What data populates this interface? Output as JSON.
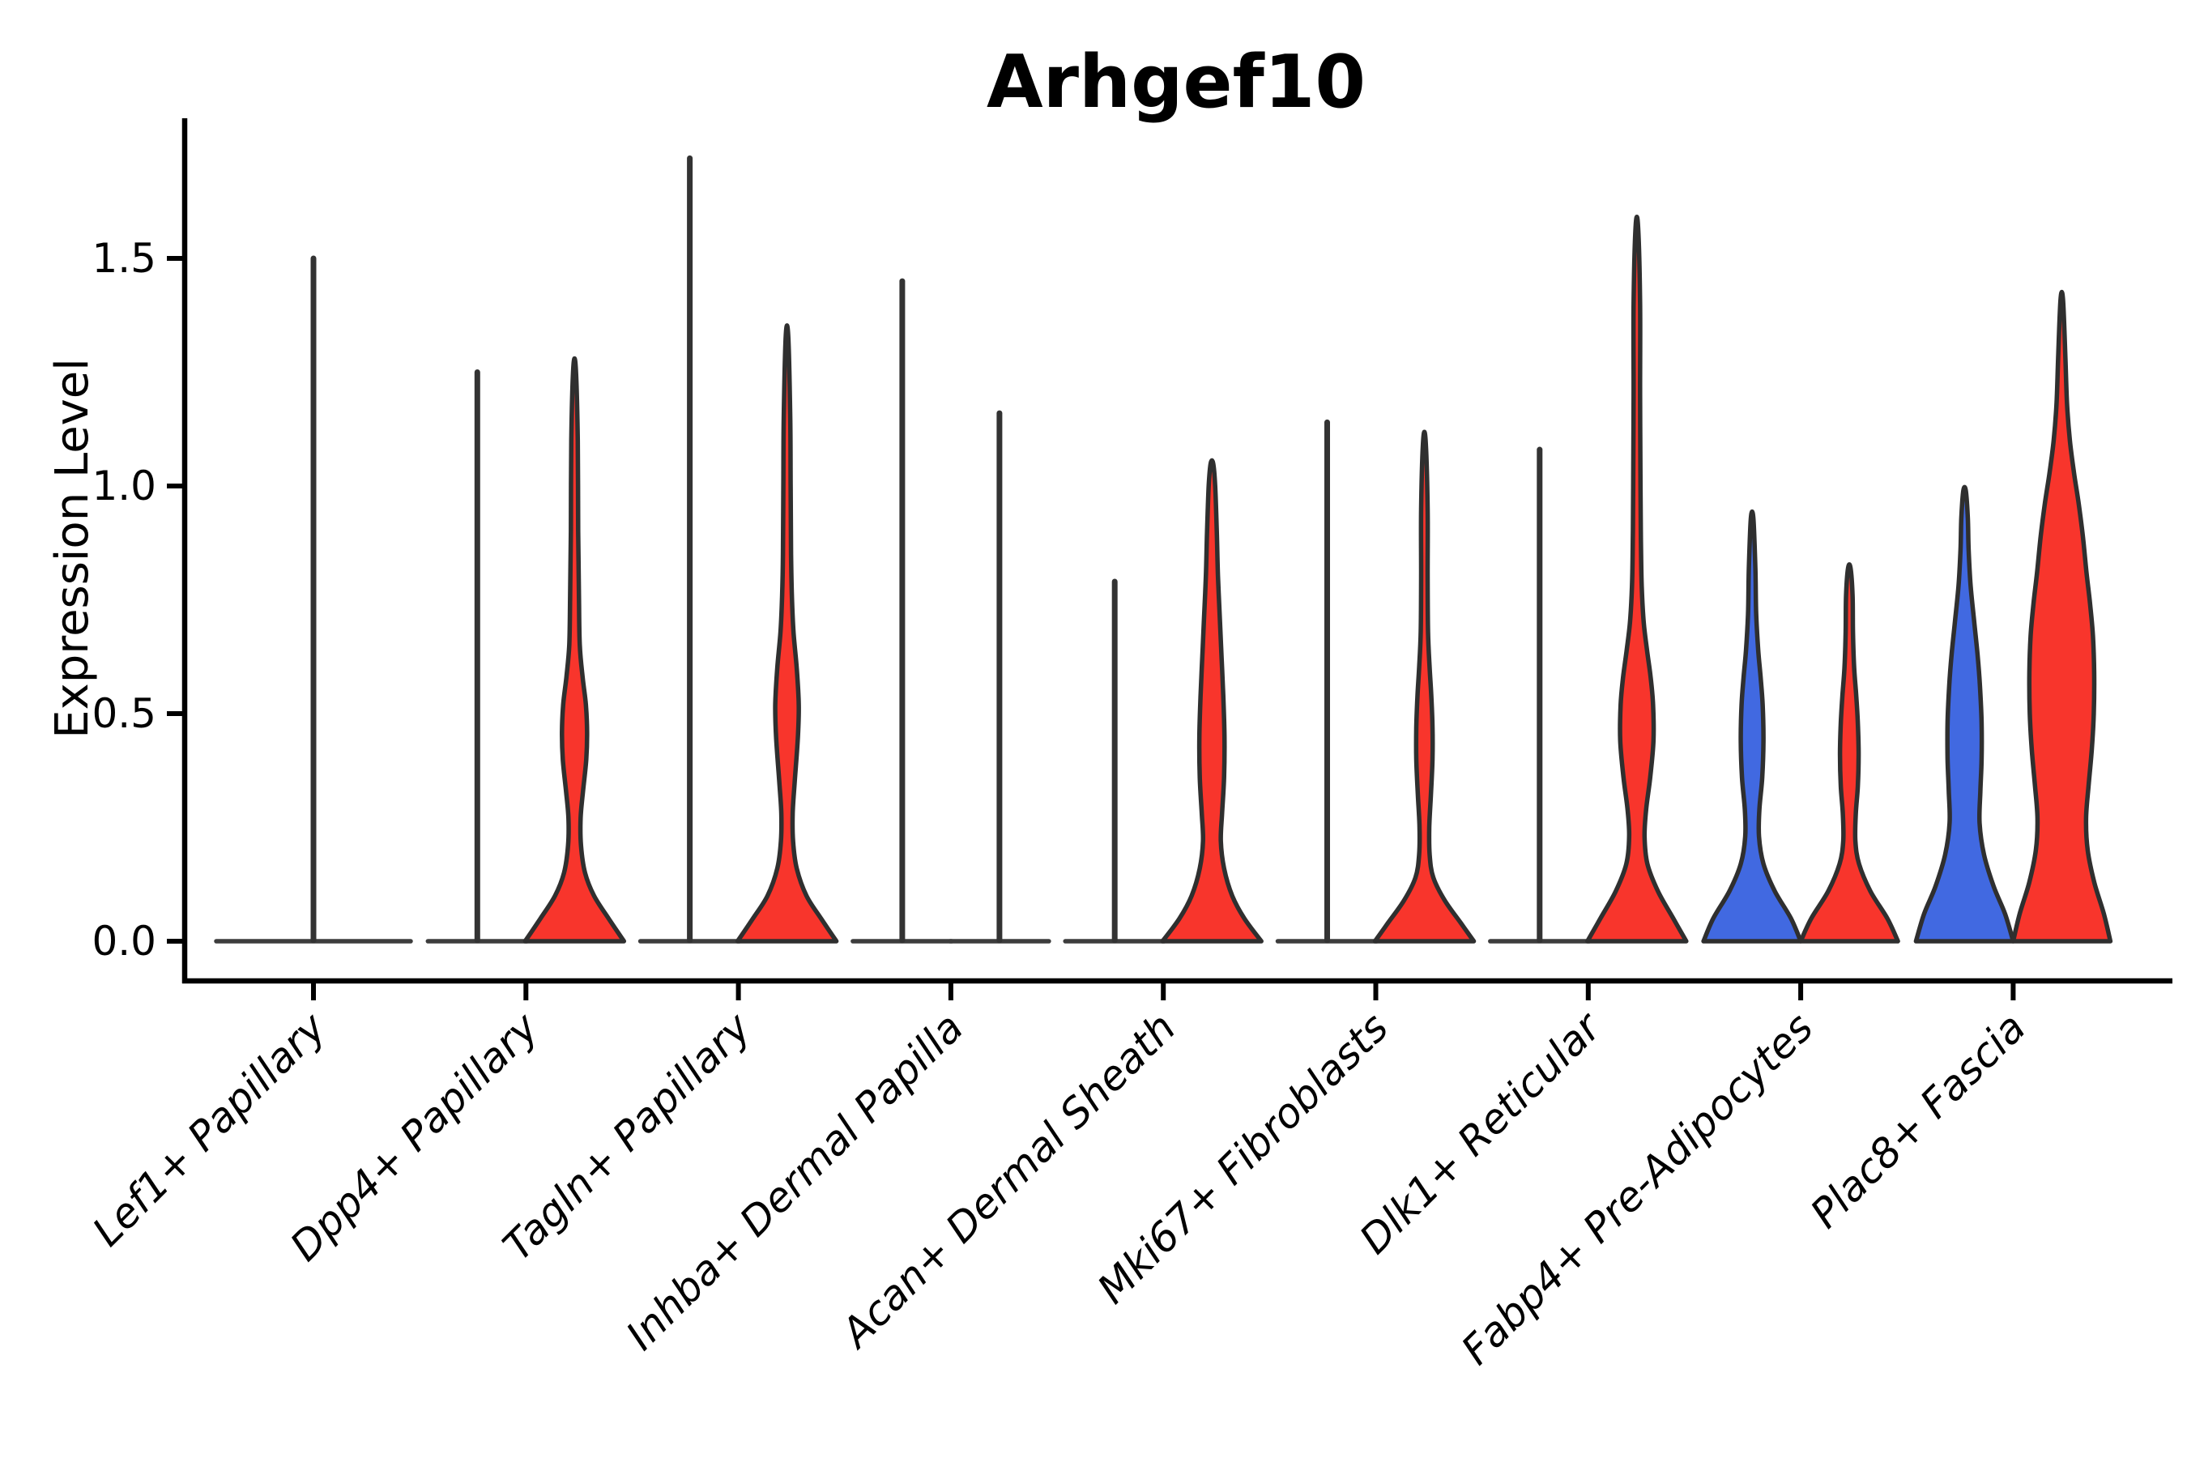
{
  "title": "Arhgef10",
  "y_axis": {
    "label": "Expression Level",
    "tick_labels": [
      "0.0",
      "0.5",
      "1.0",
      "1.5"
    ]
  },
  "x_axis": {
    "tick_labels": [
      "Lef1+ Papillary",
      "Dpp4+ Papillary",
      "Tagln+ Papillary",
      "Inhba+ Dermal Papilla",
      "Acan+ Dermal Sheath",
      "Mki67+ Fibroblasts",
      "Dlk1+ Reticular",
      "Fabp4+ Pre-Adipocytes",
      "Plac8+ Fascia"
    ]
  },
  "colors": {
    "red": "#F8352C",
    "blue": "#4169E1",
    "violin_outline": "#2F2F2F",
    "spike_line": "#333333",
    "baseline_line": "#3D3D3D",
    "axis": "#000000",
    "text": "#000000",
    "background": "#FFFFFF"
  },
  "chart_data": {
    "type": "violin",
    "title": "Arhgef10",
    "xlabel": "",
    "ylabel": "Expression Level",
    "ylim": [
      -0.09,
      1.8
    ],
    "yticks": [
      0,
      0.5,
      1.0,
      1.5
    ],
    "grid": false,
    "legend": null,
    "split_layout": "paired violins per category; left violin blue condition, right violin red condition; single centered violin when only one condition present",
    "categories": [
      "Lef1+ Papillary",
      "Dpp4+ Papillary",
      "Tagln+ Papillary",
      "Inhba+ Dermal Papilla",
      "Acan+ Dermal Sheath",
      "Mki67+ Fibroblasts",
      "Dlk1+ Reticular",
      "Fabp4+ Pre-Adipocytes",
      "Plac8+ Fascia"
    ],
    "groups": [
      {
        "category": "Lef1+ Papillary",
        "violins": [
          {
            "split": "center",
            "shape": "spike",
            "fill": null,
            "max_expression": 1.5,
            "base_halfwidth": 120
          }
        ]
      },
      {
        "category": "Dpp4+ Papillary",
        "violins": [
          {
            "split": "left",
            "shape": "spike",
            "fill": null,
            "max_expression": 1.25,
            "base_halfwidth": 61
          },
          {
            "split": "right",
            "shape": "density",
            "fill": "red",
            "max_expression": 1.26,
            "base_halfwidth": 61,
            "profile": [
              [
                0,
                61
              ],
              [
                0.05,
                42
              ],
              [
                0.1,
                24
              ],
              [
                0.15,
                13
              ],
              [
                0.21,
                8
              ],
              [
                0.27,
                7.5
              ],
              [
                0.33,
                10.5
              ],
              [
                0.4,
                14.5
              ],
              [
                0.46,
                15.5
              ],
              [
                0.52,
                14
              ],
              [
                0.58,
                10
              ],
              [
                0.65,
                6.5
              ],
              [
                0.75,
                5.5
              ],
              [
                0.9,
                4.5
              ],
              [
                1.1,
                4
              ],
              [
                1.26,
                1.5
              ]
            ]
          }
        ]
      },
      {
        "category": "Tagln+ Papillary",
        "violins": [
          {
            "split": "left",
            "shape": "spike",
            "fill": null,
            "max_expression": 1.72,
            "base_halfwidth": 61
          },
          {
            "split": "right",
            "shape": "density",
            "fill": "red",
            "max_expression": 1.33,
            "base_halfwidth": 61,
            "profile": [
              [
                0,
                61
              ],
              [
                0.05,
                42
              ],
              [
                0.1,
                24
              ],
              [
                0.16,
                12
              ],
              [
                0.22,
                7.5
              ],
              [
                0.28,
                7
              ],
              [
                0.35,
                9.5
              ],
              [
                0.45,
                13.5
              ],
              [
                0.52,
                14.5
              ],
              [
                0.6,
                12
              ],
              [
                0.68,
                8
              ],
              [
                0.76,
                6
              ],
              [
                0.85,
                5
              ],
              [
                1.0,
                4.5
              ],
              [
                1.15,
                4
              ],
              [
                1.33,
                1.5
              ]
            ]
          }
        ]
      },
      {
        "category": "Inhba+ Dermal Papilla",
        "violins": [
          {
            "split": "left",
            "shape": "spike",
            "fill": null,
            "max_expression": 1.45,
            "base_halfwidth": 61
          },
          {
            "split": "right",
            "shape": "spike",
            "fill": null,
            "max_expression": 1.16,
            "base_halfwidth": 61
          }
        ]
      },
      {
        "category": "Acan+ Dermal Sheath",
        "violins": [
          {
            "split": "left",
            "shape": "spike",
            "fill": null,
            "max_expression": 0.79,
            "base_halfwidth": 61
          },
          {
            "split": "right",
            "shape": "density",
            "fill": "red",
            "max_expression": 1.05,
            "base_halfwidth": 61,
            "profile": [
              [
                0,
                61
              ],
              [
                0.05,
                40
              ],
              [
                0.1,
                25
              ],
              [
                0.16,
                15
              ],
              [
                0.22,
                11
              ],
              [
                0.28,
                12.5
              ],
              [
                0.36,
                15
              ],
              [
                0.45,
                15.5
              ],
              [
                0.54,
                14
              ],
              [
                0.62,
                12
              ],
              [
                0.7,
                10
              ],
              [
                0.8,
                7.5
              ],
              [
                0.9,
                6
              ],
              [
                1.0,
                4
              ],
              [
                1.05,
                1.5
              ]
            ]
          }
        ]
      },
      {
        "category": "Mki67+ Fibroblasts",
        "violins": [
          {
            "split": "left",
            "shape": "spike",
            "fill": null,
            "max_expression": 1.14,
            "base_halfwidth": 61
          },
          {
            "split": "right",
            "shape": "density",
            "fill": "red",
            "max_expression": 1.1,
            "base_halfwidth": 61,
            "profile": [
              [
                0,
                61
              ],
              [
                0.04,
                45
              ],
              [
                0.09,
                25
              ],
              [
                0.14,
                11
              ],
              [
                0.19,
                6.5
              ],
              [
                0.25,
                6
              ],
              [
                0.32,
                8
              ],
              [
                0.4,
                10
              ],
              [
                0.47,
                10
              ],
              [
                0.54,
                8.5
              ],
              [
                0.6,
                6.5
              ],
              [
                0.68,
                4.5
              ],
              [
                0.8,
                4
              ],
              [
                0.95,
                4
              ],
              [
                1.1,
                1.5
              ]
            ]
          }
        ]
      },
      {
        "category": "Dlk1+ Reticular",
        "violins": [
          {
            "split": "left",
            "shape": "spike",
            "fill": null,
            "max_expression": 1.08,
            "base_halfwidth": 61
          },
          {
            "split": "right",
            "shape": "density",
            "fill": "red",
            "max_expression": 1.57,
            "base_halfwidth": 61,
            "profile": [
              [
                0,
                61
              ],
              [
                0.05,
                45
              ],
              [
                0.11,
                26
              ],
              [
                0.17,
                13
              ],
              [
                0.23,
                9.5
              ],
              [
                0.29,
                11.5
              ],
              [
                0.36,
                16.5
              ],
              [
                0.44,
                20.5
              ],
              [
                0.52,
                20
              ],
              [
                0.58,
                17
              ],
              [
                0.64,
                12.5
              ],
              [
                0.7,
                8.5
              ],
              [
                0.78,
                6
              ],
              [
                0.88,
                5
              ],
              [
                1.0,
                4.5
              ],
              [
                1.2,
                4
              ],
              [
                1.4,
                4
              ],
              [
                1.57,
                1.5
              ]
            ]
          }
        ]
      },
      {
        "category": "Fabp4+ Pre-Adipocytes",
        "violins": [
          {
            "split": "left",
            "shape": "density",
            "fill": "blue",
            "max_expression": 0.93,
            "base_halfwidth": 60,
            "profile": [
              [
                0,
                60
              ],
              [
                0.05,
                48
              ],
              [
                0.11,
                28
              ],
              [
                0.17,
                14
              ],
              [
                0.23,
                8.5
              ],
              [
                0.29,
                9
              ],
              [
                0.36,
                12.5
              ],
              [
                0.44,
                14
              ],
              [
                0.52,
                13
              ],
              [
                0.58,
                10.5
              ],
              [
                0.64,
                7.5
              ],
              [
                0.72,
                5
              ],
              [
                0.82,
                4
              ],
              [
                0.93,
                1.5
              ]
            ]
          },
          {
            "split": "right",
            "shape": "density",
            "fill": "red",
            "max_expression": 0.82,
            "base_halfwidth": 60,
            "profile": [
              [
                0,
                60
              ],
              [
                0.05,
                47
              ],
              [
                0.11,
                26
              ],
              [
                0.17,
                12
              ],
              [
                0.22,
                7.5
              ],
              [
                0.28,
                8
              ],
              [
                0.34,
                10.5
              ],
              [
                0.41,
                11.5
              ],
              [
                0.48,
                10.5
              ],
              [
                0.54,
                8.5
              ],
              [
                0.6,
                6
              ],
              [
                0.68,
                4.5
              ],
              [
                0.76,
                4
              ],
              [
                0.82,
                1.5
              ]
            ]
          }
        ]
      },
      {
        "category": "Plac8+ Fascia",
        "violins": [
          {
            "split": "left",
            "shape": "density",
            "fill": "blue",
            "max_expression": 0.99,
            "base_halfwidth": 60,
            "profile": [
              [
                0,
                60
              ],
              [
                0.06,
                50
              ],
              [
                0.12,
                36
              ],
              [
                0.19,
                24
              ],
              [
                0.26,
                18.5
              ],
              [
                0.33,
                19.5
              ],
              [
                0.4,
                21
              ],
              [
                0.48,
                21
              ],
              [
                0.56,
                19
              ],
              [
                0.63,
                16
              ],
              [
                0.7,
                12
              ],
              [
                0.78,
                7.5
              ],
              [
                0.86,
                5
              ],
              [
                0.93,
                4
              ],
              [
                0.99,
                1.5
              ]
            ]
          },
          {
            "split": "right",
            "shape": "density",
            "fill": "red",
            "max_expression": 1.41,
            "base_halfwidth": 60,
            "profile": [
              [
                0,
                60
              ],
              [
                0.06,
                52
              ],
              [
                0.13,
                40
              ],
              [
                0.2,
                32
              ],
              [
                0.27,
                30
              ],
              [
                0.34,
                33
              ],
              [
                0.42,
                37
              ],
              [
                0.5,
                39.5
              ],
              [
                0.59,
                40
              ],
              [
                0.67,
                38.5
              ],
              [
                0.74,
                35
              ],
              [
                0.81,
                30.5
              ],
              [
                0.89,
                26
              ],
              [
                0.96,
                21
              ],
              [
                1.03,
                15
              ],
              [
                1.1,
                10
              ],
              [
                1.18,
                6.5
              ],
              [
                1.28,
                4.5
              ],
              [
                1.41,
                1.5
              ]
            ]
          }
        ]
      }
    ]
  }
}
